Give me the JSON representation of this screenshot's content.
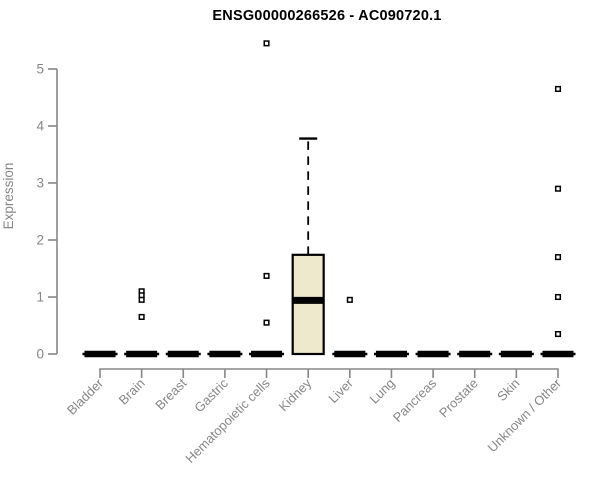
{
  "chart_data": {
    "type": "boxplot",
    "title": "ENSG00000266526 - AC090720.1",
    "ylabel": "Expression",
    "xlabel": "",
    "ylim": [
      0,
      5
    ],
    "yticks": [
      0,
      1,
      2,
      3,
      4,
      5
    ],
    "grid": false,
    "legend": false,
    "categories": [
      "Bladder",
      "Brain",
      "Breast",
      "Gastric",
      "Hematopoietic cells",
      "Kidney",
      "Liver",
      "Lung",
      "Pancreas",
      "Prostate",
      "Skin",
      "Unknown / Other"
    ],
    "boxes": [
      {
        "category": "Bladder",
        "whisker_low": 0,
        "q1": 0,
        "median": 0,
        "q3": 0,
        "whisker_high": 0,
        "outliers": []
      },
      {
        "category": "Brain",
        "whisker_low": 0,
        "q1": 0,
        "median": 0,
        "q3": 0,
        "whisker_high": 0,
        "outliers": [
          1.1,
          1.03,
          0.95,
          0.65
        ]
      },
      {
        "category": "Breast",
        "whisker_low": 0,
        "q1": 0,
        "median": 0,
        "q3": 0,
        "whisker_high": 0,
        "outliers": []
      },
      {
        "category": "Gastric",
        "whisker_low": 0,
        "q1": 0,
        "median": 0,
        "q3": 0,
        "whisker_high": 0,
        "outliers": []
      },
      {
        "category": "Hematopoietic cells",
        "whisker_low": 0,
        "q1": 0,
        "median": 0,
        "q3": 0,
        "whisker_high": 0,
        "outliers": [
          5.45,
          1.37,
          0.55
        ]
      },
      {
        "category": "Kidney",
        "whisker_low": 0,
        "q1": 0,
        "median": 0.94,
        "q3": 1.74,
        "whisker_high": 3.78,
        "outliers": []
      },
      {
        "category": "Liver",
        "whisker_low": 0,
        "q1": 0,
        "median": 0,
        "q3": 0,
        "whisker_high": 0,
        "outliers": [
          0.95
        ]
      },
      {
        "category": "Lung",
        "whisker_low": 0,
        "q1": 0,
        "median": 0,
        "q3": 0,
        "whisker_high": 0,
        "outliers": []
      },
      {
        "category": "Pancreas",
        "whisker_low": 0,
        "q1": 0,
        "median": 0,
        "q3": 0,
        "whisker_high": 0,
        "outliers": []
      },
      {
        "category": "Prostate",
        "whisker_low": 0,
        "q1": 0,
        "median": 0,
        "q3": 0,
        "whisker_high": 0,
        "outliers": []
      },
      {
        "category": "Skin",
        "whisker_low": 0,
        "q1": 0,
        "median": 0,
        "q3": 0,
        "whisker_high": 0,
        "outliers": []
      },
      {
        "category": "Unknown / Other",
        "whisker_low": 0,
        "q1": 0,
        "median": 0,
        "q3": 0,
        "whisker_high": 0,
        "outliers": [
          4.65,
          2.9,
          1.7,
          1.0,
          0.35
        ]
      }
    ],
    "colors": {
      "box_fill": "#EEE8CD",
      "box_stroke": "#000000",
      "median": "#000000",
      "outlier_fill": "#ffffff",
      "axis": "#878787",
      "tick_label": "#878787",
      "title": "#000000",
      "background": "#ffffff"
    }
  }
}
